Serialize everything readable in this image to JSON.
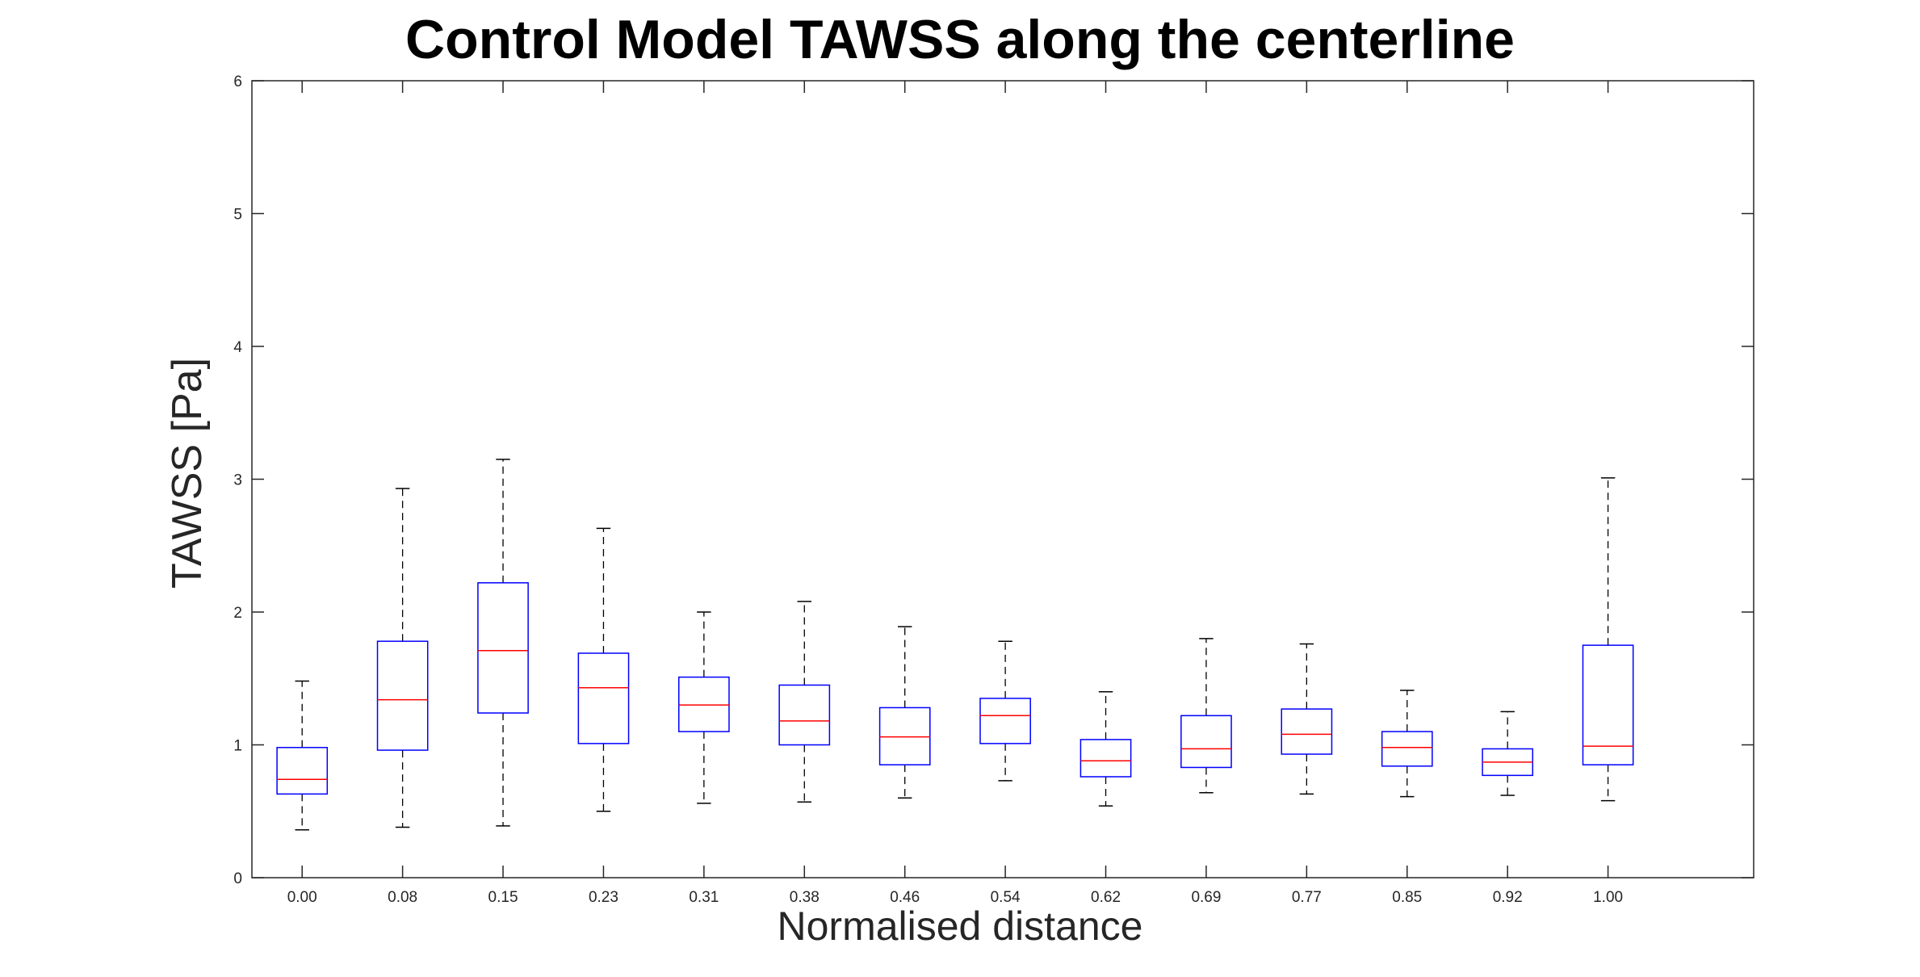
{
  "chart_data": {
    "type": "boxplot",
    "title": "Control Model TAWSS along the centerline",
    "xlabel": "Normalised distance",
    "ylabel": "TAWSS [Pa]",
    "ylim": [
      0,
      6
    ],
    "yticks": [
      "0",
      "1",
      "2",
      "3",
      "4",
      "5",
      "6"
    ],
    "categories": [
      "0.00",
      "0.08",
      "0.15",
      "0.23",
      "0.31",
      "0.38",
      "0.46",
      "0.54",
      "0.62",
      "0.69",
      "0.77",
      "0.85",
      "0.92",
      "1.00"
    ],
    "boxes": [
      {
        "lower_whisker": 0.36,
        "q1": 0.63,
        "median": 0.74,
        "q3": 0.98,
        "upper_whisker": 1.48
      },
      {
        "lower_whisker": 0.38,
        "q1": 0.96,
        "median": 1.34,
        "q3": 1.78,
        "upper_whisker": 2.93
      },
      {
        "lower_whisker": 0.39,
        "q1": 1.24,
        "median": 1.71,
        "q3": 2.22,
        "upper_whisker": 3.15
      },
      {
        "lower_whisker": 0.5,
        "q1": 1.01,
        "median": 1.43,
        "q3": 1.69,
        "upper_whisker": 2.63
      },
      {
        "lower_whisker": 0.56,
        "q1": 1.1,
        "median": 1.3,
        "q3": 1.51,
        "upper_whisker": 2.0
      },
      {
        "lower_whisker": 0.57,
        "q1": 1.0,
        "median": 1.18,
        "q3": 1.45,
        "upper_whisker": 2.08
      },
      {
        "lower_whisker": 0.6,
        "q1": 0.85,
        "median": 1.06,
        "q3": 1.28,
        "upper_whisker": 1.89
      },
      {
        "lower_whisker": 0.73,
        "q1": 1.01,
        "median": 1.22,
        "q3": 1.35,
        "upper_whisker": 1.78
      },
      {
        "lower_whisker": 0.54,
        "q1": 0.76,
        "median": 0.88,
        "q3": 1.04,
        "upper_whisker": 1.4
      },
      {
        "lower_whisker": 0.64,
        "q1": 0.83,
        "median": 0.97,
        "q3": 1.22,
        "upper_whisker": 1.8
      },
      {
        "lower_whisker": 0.63,
        "q1": 0.93,
        "median": 1.08,
        "q3": 1.27,
        "upper_whisker": 1.76
      },
      {
        "lower_whisker": 0.61,
        "q1": 0.84,
        "median": 0.98,
        "q3": 1.1,
        "upper_whisker": 1.41
      },
      {
        "lower_whisker": 0.62,
        "q1": 0.77,
        "median": 0.87,
        "q3": 0.97,
        "upper_whisker": 1.25
      },
      {
        "lower_whisker": 0.58,
        "q1": 0.85,
        "median": 0.99,
        "q3": 1.75,
        "upper_whisker": 3.01
      }
    ],
    "grid": false,
    "colors": {
      "box": "#0000ff",
      "median": "#ff0000",
      "whisker": "#000000",
      "axis": "#262626"
    }
  }
}
